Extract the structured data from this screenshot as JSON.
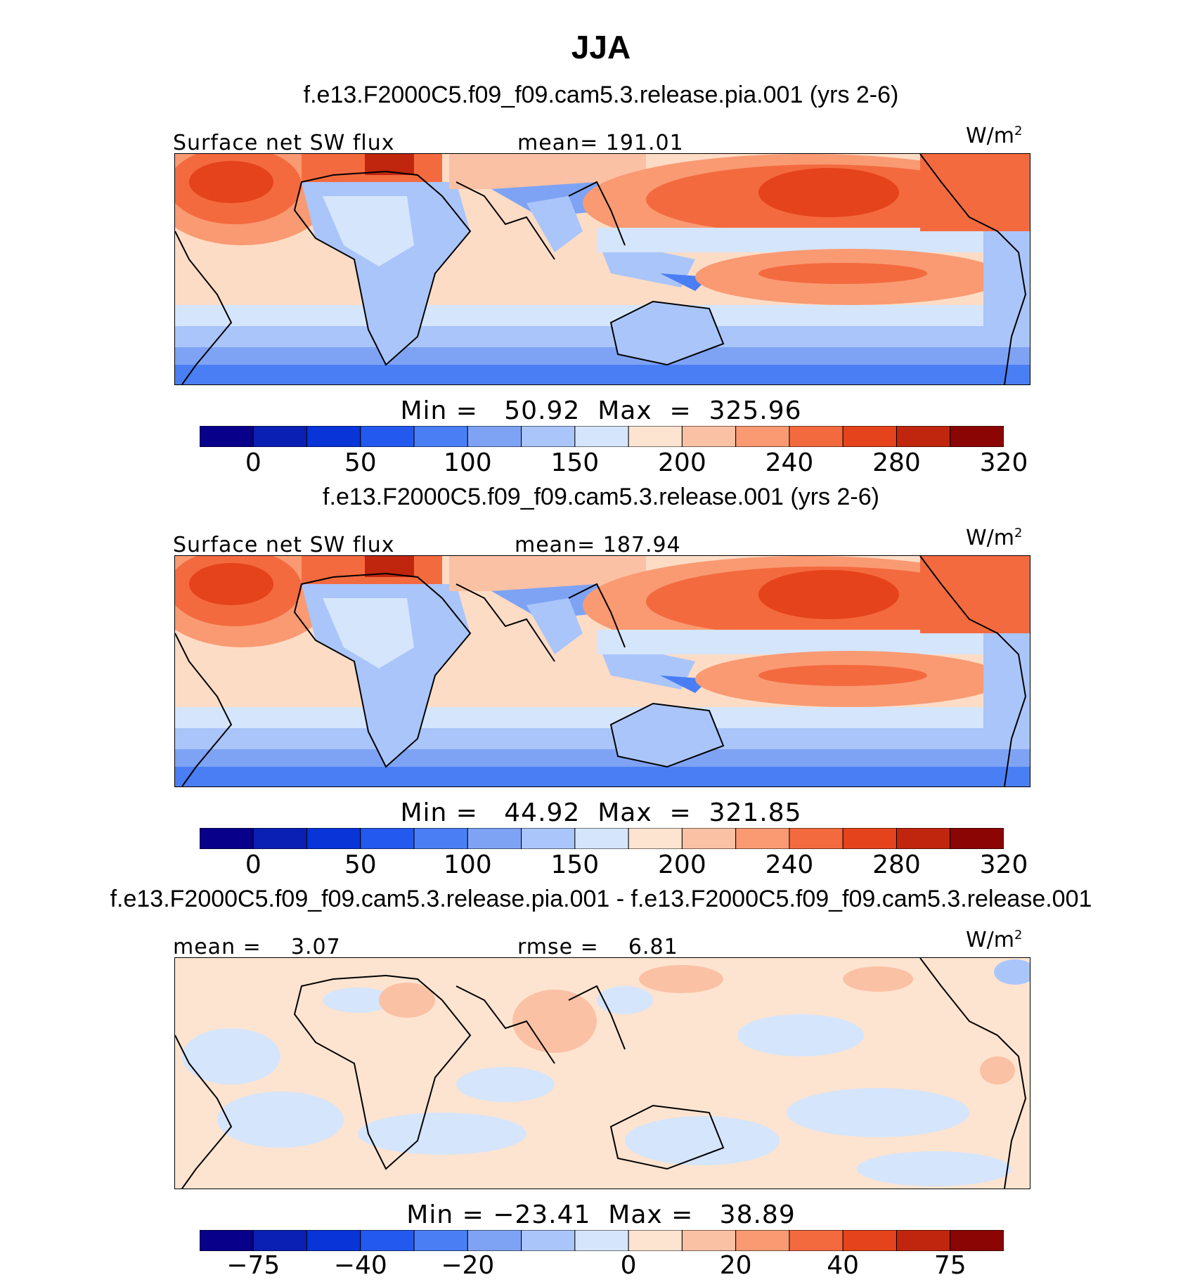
{
  "title": "JJA",
  "units_label": "W/m",
  "units_exp": "2",
  "panels": [
    {
      "case": "f.e13.F2000C5.f09_f09.cam5.3.release.pia.001 (yrs 2-6)",
      "left_label": "Surface net SW flux",
      "center_label": "mean= 191.01",
      "minmax": "Min =   50.92  Max  =  325.96",
      "style": "abs",
      "ticks": [
        "0",
        "50",
        "100",
        "150",
        "200",
        "240",
        "280",
        "320"
      ]
    },
    {
      "case": "f.e13.F2000C5.f09_f09.cam5.3.release.001 (yrs 2-6)",
      "left_label": "Surface net SW flux",
      "center_label": "mean= 187.94",
      "minmax": "Min =   44.92  Max  =  321.85",
      "style": "abs",
      "ticks": [
        "0",
        "50",
        "100",
        "150",
        "200",
        "240",
        "280",
        "320"
      ]
    },
    {
      "case": "f.e13.F2000C5.f09_f09.cam5.3.release.pia.001 - f.e13.F2000C5.f09_f09.cam5.3.release.001",
      "left_label": "mean =    3.07",
      "center_label": "rmse =    6.81",
      "minmax": "Min = −23.41  Max =   38.89",
      "style": "diff",
      "ticks": [
        "−75",
        "−40",
        "−20",
        "0",
        "20",
        "40",
        "75"
      ]
    }
  ],
  "colorbar_colors": [
    "#08008a",
    "#0a1fb4",
    "#0834d8",
    "#2359ee",
    "#4a7ef4",
    "#7ea3f5",
    "#aac5fa",
    "#d5e5fb",
    "#fde4d0",
    "#fbc1a4",
    "#f99a72",
    "#f46a3f",
    "#e5431b",
    "#c0260e",
    "#8b0505"
  ],
  "colorbar_colors_diff": [
    "#08008a",
    "#0a1fb4",
    "#0834d8",
    "#2359ee",
    "#4a7ef4",
    "#7ea3f5",
    "#aac5fa",
    "#d5e5fb",
    "#fde4d0",
    "#fbc1a4",
    "#f99a72",
    "#f46a3f",
    "#e5431b",
    "#c0260e",
    "#8b0505"
  ],
  "chart_data": [
    {
      "type": "heatmap",
      "title": "JJA",
      "subtitle": "f.e13.F2000C5.f09_f09.cam5.3.release.pia.001 (yrs 2-6)",
      "variable": "Surface net SW flux",
      "units": "W/m2",
      "mean": 191.01,
      "min": 50.92,
      "max": 325.96,
      "colorbar_ticks": [
        0,
        50,
        100,
        150,
        200,
        240,
        280,
        320
      ]
    },
    {
      "type": "heatmap",
      "title": "JJA",
      "subtitle": "f.e13.F2000C5.f09_f09.cam5.3.release.001 (yrs 2-6)",
      "variable": "Surface net SW flux",
      "units": "W/m2",
      "mean": 187.94,
      "min": 44.92,
      "max": 321.85,
      "colorbar_ticks": [
        0,
        50,
        100,
        150,
        200,
        240,
        280,
        320
      ]
    },
    {
      "type": "heatmap",
      "title": "JJA",
      "subtitle": "f.e13.F2000C5.f09_f09.cam5.3.release.pia.001 - f.e13.F2000C5.f09_f09.cam5.3.release.001",
      "units": "W/m2",
      "mean": 3.07,
      "rmse": 6.81,
      "min": -23.41,
      "max": 38.89,
      "colorbar_ticks": [
        -75,
        -40,
        -20,
        0,
        20,
        40,
        75
      ]
    }
  ]
}
